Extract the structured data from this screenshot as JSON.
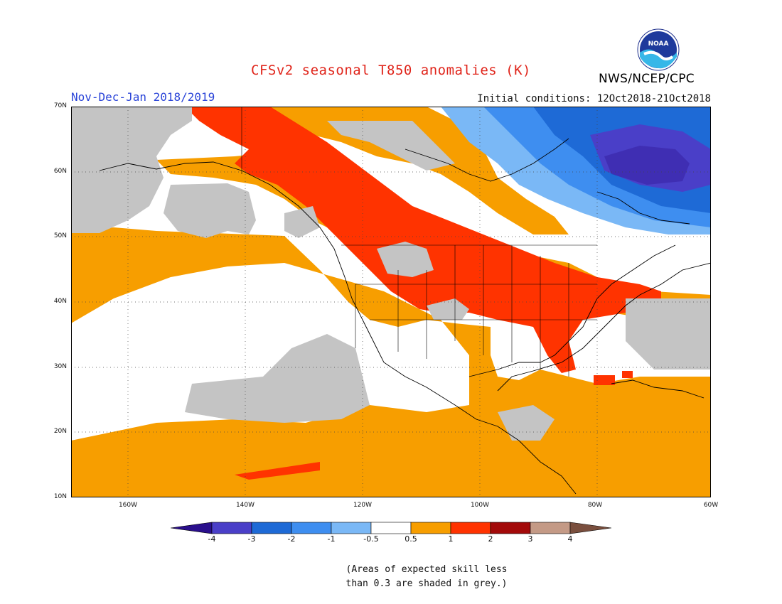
{
  "title": "CFSv2 seasonal T850 anomalies (K)",
  "season": "Nov-Dec-Jan 2018/2019",
  "initial_conditions": "Initial conditions: 12Oct2018-21Oct2018",
  "agency": "NWS/NCEP/CPC",
  "logo_text": "NOAA",
  "lat_labels": [
    "70N",
    "60N",
    "50N",
    "40N",
    "30N",
    "20N",
    "10N"
  ],
  "lon_labels": [
    "160W",
    "140W",
    "120W",
    "100W",
    "80W",
    "60W"
  ],
  "colorbar": {
    "labels": [
      "-4",
      "-3",
      "-2",
      "-1",
      "-0.5",
      "0.5",
      "1",
      "2",
      "3",
      "4"
    ],
    "colors": [
      "#2a0f8c",
      "#4a3fc8",
      "#1e6ad6",
      "#3e8ef0",
      "#7ab8f6",
      "#ffffff",
      "#f79e00",
      "#ff3300",
      "#a30a0a",
      "#c49a86",
      "#7a4f3e"
    ]
  },
  "note_line1": "(Areas of expected skill less",
  "note_line2": "than 0.3 are shaded in grey.)",
  "colors": {
    "grey": "#c4c4c4",
    "orange": "#f79e00",
    "red": "#ff3300",
    "title": "#e0251b",
    "season": "#2a44d8"
  }
}
